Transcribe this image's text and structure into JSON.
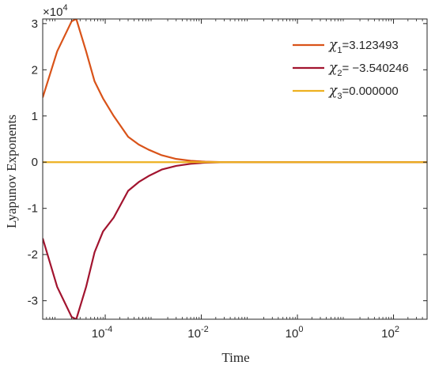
{
  "chart_data": {
    "type": "line",
    "x_scale": "log",
    "xlabel": "Time",
    "ylabel": "Lyapunov Exponents",
    "xlim": [
      5e-06,
      500
    ],
    "ylim": [
      -34000,
      31000
    ],
    "y_exponent_label": "×10",
    "y_exponent_power": "4",
    "x_ticks": [
      {
        "value": 0.0001,
        "base": "10",
        "exp": "-4"
      },
      {
        "value": 0.01,
        "base": "10",
        "exp": "-2"
      },
      {
        "value": 1,
        "base": "10",
        "exp": "0"
      },
      {
        "value": 100,
        "base": "10",
        "exp": "2"
      }
    ],
    "y_ticks": [
      {
        "value": -30000,
        "label": "-3"
      },
      {
        "value": -20000,
        "label": "-2"
      },
      {
        "value": -10000,
        "label": "-1"
      },
      {
        "value": 0,
        "label": "0"
      },
      {
        "value": 10000,
        "label": "1"
      },
      {
        "value": 20000,
        "label": "2"
      },
      {
        "value": 30000,
        "label": "3"
      }
    ],
    "grid": false,
    "legend_position": "top-right",
    "series": [
      {
        "name": "χ1=3.123493",
        "legend_symbol": "χ",
        "legend_sub": "1",
        "legend_value": "=3.123493",
        "color": "#D95319",
        "x": [
          5e-06,
          1e-05,
          2e-05,
          2.5e-05,
          4e-05,
          6e-05,
          9e-05,
          0.00015,
          0.0003,
          0.0005,
          0.0008,
          0.0015,
          0.003,
          0.006,
          0.012,
          0.025,
          0.05,
          0.08,
          500
        ],
        "y": [
          14000,
          24000,
          30500,
          31000,
          24000,
          17500,
          13800,
          10000,
          5500,
          3800,
          2700,
          1500,
          700,
          300,
          100,
          30,
          5,
          0,
          0
        ]
      },
      {
        "name": "χ2= −3.540246",
        "legend_symbol": "χ",
        "legend_sub": "2",
        "legend_value": "= −3.540246",
        "color": "#A2142F",
        "x": [
          5e-06,
          1e-05,
          2e-05,
          2.5e-05,
          4e-05,
          6e-05,
          9e-05,
          0.00015,
          0.0003,
          0.0005,
          0.0008,
          0.0015,
          0.003,
          0.006,
          0.012,
          0.025,
          0.05,
          0.08,
          500
        ],
        "y": [
          -16500,
          -27000,
          -33500,
          -34000,
          -27000,
          -19500,
          -15000,
          -12000,
          -6200,
          -4300,
          -3000,
          -1600,
          -800,
          -350,
          -120,
          -40,
          -8,
          0,
          0
        ]
      },
      {
        "name": "χ3=0.000000",
        "legend_symbol": "χ",
        "legend_sub": "3",
        "legend_value": "=0.000000",
        "color": "#EDB120",
        "x": [
          5e-06,
          500
        ],
        "y": [
          0,
          0
        ]
      }
    ]
  }
}
